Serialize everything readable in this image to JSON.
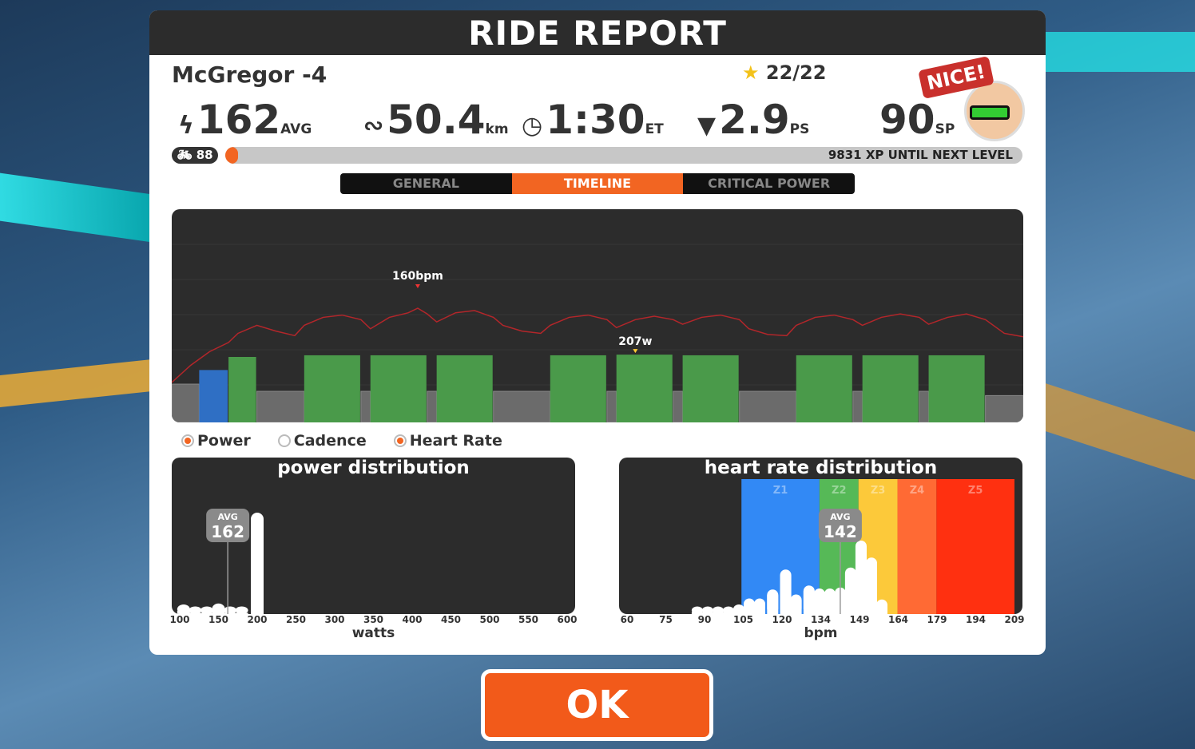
{
  "header": {
    "title": "RIDE REPORT"
  },
  "rider": {
    "name": "McGregor -4",
    "stars": "22/22",
    "badge": "NICE!",
    "level": "88"
  },
  "stats": [
    {
      "icon": "lightning-icon",
      "value": "162",
      "unit": "AVG"
    },
    {
      "icon": "route-icon",
      "value": "50.4",
      "unit": "km"
    },
    {
      "icon": "clock-icon",
      "value": "1:30",
      "unit": "ET"
    },
    {
      "icon": "pizza-icon",
      "value": "2.9",
      "unit": "PS"
    },
    {
      "icon": "sport-points-icon",
      "value": "90",
      "unit": "SP"
    }
  ],
  "xp": {
    "text": "9831 XP UNTIL NEXT LEVEL",
    "progress_pct": 1
  },
  "tabs": [
    {
      "label": "GENERAL",
      "active": false
    },
    {
      "label": "TIMELINE",
      "active": true
    },
    {
      "label": "CRITICAL POWER",
      "active": false
    }
  ],
  "legend": [
    {
      "label": "Power",
      "checked": true
    },
    {
      "label": "Cadence",
      "checked": false
    },
    {
      "label": "Heart Rate",
      "checked": true
    }
  ],
  "colors": {
    "accent": "#f26522",
    "interval": "#4a9a4a",
    "warmup": "#2f6fc4",
    "base": "#6b6b6b",
    "hr_line": "#b3262a",
    "z1": "#3289f5",
    "z2": "#56b957",
    "z3": "#fcc93a",
    "z4": "#ff6a34",
    "z5": "#ff3010"
  },
  "chart_data": [
    {
      "type": "bar",
      "title": "",
      "duration_min": 90,
      "annotations": [
        {
          "label": "160bpm",
          "series": "hr",
          "minute": 26
        },
        {
          "label": "207w",
          "series": "power",
          "minute": 49
        }
      ],
      "power_segments": [
        [
          0,
          2.9,
          117,
          "base"
        ],
        [
          2.9,
          6,
          160,
          "warmup"
        ],
        [
          6,
          9,
          200,
          "interval"
        ],
        [
          9,
          14,
          95,
          "base"
        ],
        [
          14,
          20,
          205,
          "interval"
        ],
        [
          20,
          21,
          95,
          "base"
        ],
        [
          21,
          27,
          205,
          "interval"
        ],
        [
          27,
          28,
          95,
          "base"
        ],
        [
          28,
          34,
          205,
          "interval"
        ],
        [
          34,
          40,
          95,
          "base"
        ],
        [
          40,
          46,
          205,
          "interval"
        ],
        [
          46,
          47,
          95,
          "base"
        ],
        [
          47,
          53,
          207,
          "interval"
        ],
        [
          53,
          54,
          95,
          "base"
        ],
        [
          54,
          60,
          205,
          "interval"
        ],
        [
          60,
          66,
          95,
          "base"
        ],
        [
          66,
          72,
          205,
          "interval"
        ],
        [
          72,
          73,
          95,
          "base"
        ],
        [
          73,
          79,
          205,
          "interval"
        ],
        [
          79,
          80,
          95,
          "base"
        ],
        [
          80,
          86,
          205,
          "interval"
        ],
        [
          86,
          90,
          82,
          "base"
        ]
      ],
      "heart_rate": [
        [
          0,
          95
        ],
        [
          2,
          110
        ],
        [
          4,
          122
        ],
        [
          6,
          130
        ],
        [
          7,
          138
        ],
        [
          9,
          145
        ],
        [
          11,
          140
        ],
        [
          13,
          136
        ],
        [
          14,
          145
        ],
        [
          16,
          152
        ],
        [
          18,
          154
        ],
        [
          20,
          150
        ],
        [
          21,
          142
        ],
        [
          23,
          152
        ],
        [
          25,
          156
        ],
        [
          26,
          160
        ],
        [
          27,
          155
        ],
        [
          28,
          148
        ],
        [
          30,
          156
        ],
        [
          32,
          158
        ],
        [
          34,
          152
        ],
        [
          35,
          145
        ],
        [
          37,
          140
        ],
        [
          39,
          138
        ],
        [
          40,
          145
        ],
        [
          42,
          152
        ],
        [
          44,
          154
        ],
        [
          46,
          150
        ],
        [
          47,
          143
        ],
        [
          49,
          150
        ],
        [
          51,
          153
        ],
        [
          53,
          150
        ],
        [
          54,
          146
        ],
        [
          56,
          152
        ],
        [
          58,
          154
        ],
        [
          60,
          150
        ],
        [
          61,
          142
        ],
        [
          63,
          137
        ],
        [
          65,
          136
        ],
        [
          66,
          145
        ],
        [
          68,
          152
        ],
        [
          70,
          154
        ],
        [
          72,
          150
        ],
        [
          73,
          145
        ],
        [
          75,
          152
        ],
        [
          77,
          155
        ],
        [
          79,
          152
        ],
        [
          80,
          146
        ],
        [
          82,
          152
        ],
        [
          84,
          155
        ],
        [
          86,
          150
        ],
        [
          88,
          138
        ],
        [
          90,
          135
        ]
      ]
    },
    {
      "type": "bar",
      "title": "power distribution",
      "xlabel": "watts",
      "xlim": [
        100,
        600
      ],
      "ticks": [
        "100",
        "150",
        "200",
        "250",
        "300",
        "350",
        "400",
        "450",
        "500",
        "550",
        "600"
      ],
      "avg_label": "AVG",
      "avg": 162,
      "bins": [
        [
          105,
          8
        ],
        [
          120,
          6
        ],
        [
          135,
          6
        ],
        [
          150,
          9
        ],
        [
          165,
          6
        ],
        [
          180,
          6
        ],
        [
          200,
          100
        ]
      ]
    },
    {
      "type": "bar",
      "title": "heart rate distribution",
      "xlabel": "bpm",
      "xlim": [
        60,
        209
      ],
      "ticks": [
        "60",
        "75",
        "90",
        "105",
        "120",
        "134",
        "149",
        "164",
        "179",
        "194",
        "209"
      ],
      "zones": [
        {
          "label": "Z1",
          "from": 104,
          "to": 134
        },
        {
          "label": "Z2",
          "from": 134,
          "to": 149
        },
        {
          "label": "Z3",
          "from": 149,
          "to": 164
        },
        {
          "label": "Z4",
          "from": 164,
          "to": 179
        },
        {
          "label": "Z5",
          "from": 179,
          "to": 209
        }
      ],
      "avg_label": "AVG",
      "avg": 142,
      "bins": [
        [
          87,
          6
        ],
        [
          91,
          6
        ],
        [
          95,
          6
        ],
        [
          99,
          6
        ],
        [
          103,
          8
        ],
        [
          107,
          14
        ],
        [
          111,
          14
        ],
        [
          116,
          23
        ],
        [
          121,
          43
        ],
        [
          125,
          18
        ],
        [
          130,
          27
        ],
        [
          134,
          24
        ],
        [
          138,
          24
        ],
        [
          142,
          25
        ],
        [
          146,
          45
        ],
        [
          150,
          72
        ],
        [
          154,
          55
        ],
        [
          158,
          13
        ]
      ]
    }
  ],
  "ok_button": "OK"
}
